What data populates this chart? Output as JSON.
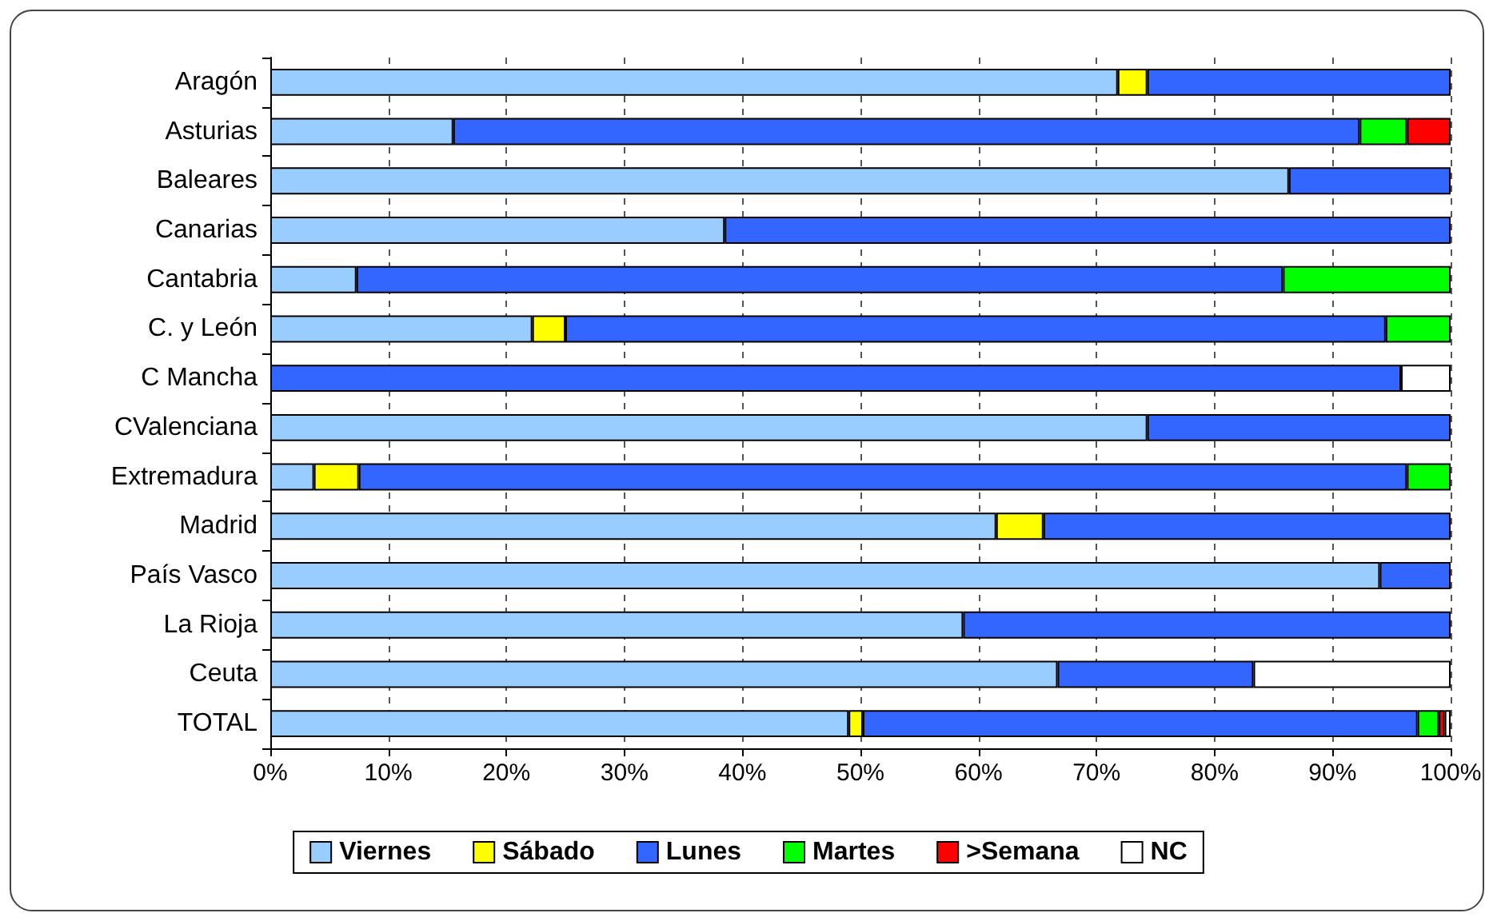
{
  "chart_data": {
    "type": "bar",
    "orientation": "horizontal",
    "stacked": true,
    "categories": [
      "Aragón",
      "Asturias",
      "Baleares",
      "Canarias",
      "Cantabria",
      "C. y León",
      "C Mancha",
      "CValenciana",
      "Extremadura",
      "Madrid",
      "País Vasco",
      "La Rioja",
      "Ceuta",
      "TOTAL"
    ],
    "series": [
      {
        "name": "Viernes",
        "color": "#99ccff",
        "values": [
          71.8,
          15.5,
          86.3,
          38.5,
          7.3,
          22.2,
          null,
          74.3,
          3.7,
          61.5,
          94.0,
          58.7,
          66.7,
          49.0
        ]
      },
      {
        "name": "Sábado",
        "color": "#ffff00",
        "values": [
          2.5,
          null,
          null,
          null,
          null,
          2.8,
          null,
          null,
          3.8,
          4.0,
          null,
          null,
          null,
          1.2
        ]
      },
      {
        "name": "Lunes",
        "color": "#3366ff",
        "values": [
          25.7,
          76.8,
          13.7,
          61.5,
          78.5,
          69.5,
          95.8,
          25.7,
          88.8,
          34.5,
          6.0,
          41.3,
          16.6,
          47.0
        ]
      },
      {
        "name": "Martes",
        "color": "#00ff00",
        "values": [
          null,
          4.0,
          null,
          null,
          14.2,
          5.5,
          null,
          null,
          3.7,
          null,
          null,
          null,
          null,
          1.8
        ]
      },
      {
        "name": ">Semana",
        "color": "#ff0000",
        "values": [
          null,
          3.7,
          null,
          null,
          null,
          null,
          null,
          null,
          null,
          null,
          null,
          null,
          null,
          0.5
        ]
      },
      {
        "name": "NC",
        "color": "#ffffff",
        "values": [
          null,
          null,
          null,
          null,
          null,
          null,
          4.2,
          null,
          null,
          null,
          null,
          null,
          16.7,
          0.5
        ]
      }
    ],
    "xlim": [
      0,
      100
    ],
    "xticks": [
      {
        "value": 0,
        "label": "0%"
      },
      {
        "value": 10,
        "label": "10%"
      },
      {
        "value": 20,
        "label": "20%"
      },
      {
        "value": 30,
        "label": "30%"
      },
      {
        "value": 40,
        "label": "40%"
      },
      {
        "value": 50,
        "label": "50%"
      },
      {
        "value": 60,
        "label": "60%"
      },
      {
        "value": 70,
        "label": "70%"
      },
      {
        "value": 80,
        "label": "80%"
      },
      {
        "value": 90,
        "label": "90%"
      },
      {
        "value": 100,
        "label": "100%"
      }
    ],
    "grid": "x",
    "legend": "bottom"
  }
}
